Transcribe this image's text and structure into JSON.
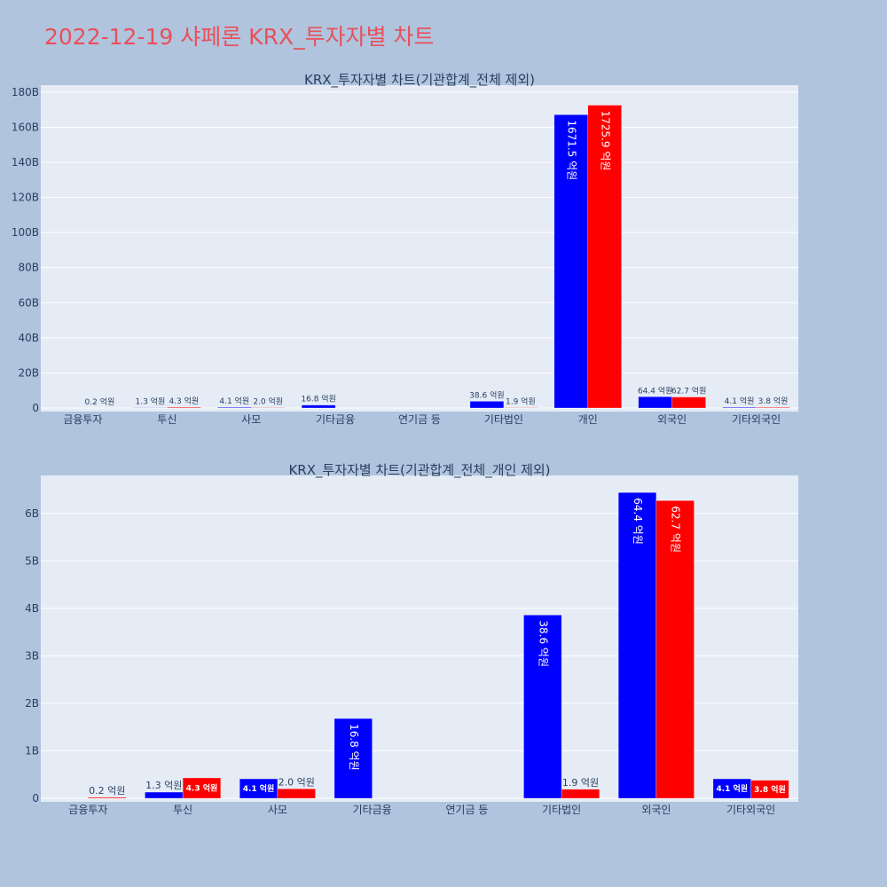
{
  "page": {
    "title": "2022-12-19 샤페론 KRX_투자자별 차트"
  },
  "colors": {
    "background": "#b0c4de",
    "plot_background": "#e5ecf6",
    "title": "#e8505b",
    "series_buy": "#0000ff",
    "series_sell": "#ff0000",
    "text": "#2a3f5f"
  },
  "chart_data": [
    {
      "type": "bar",
      "title": "KRX_투자자별 차트(기관합계_전체 제외)",
      "categories": [
        "금융투자",
        "투신",
        "사모",
        "기타금융",
        "연기금 등",
        "기타법인",
        "개인",
        "외국인",
        "기타외국인"
      ],
      "ylim": [
        0,
        184000000000
      ],
      "yticks": [
        0,
        20000000000,
        40000000000,
        60000000000,
        80000000000,
        100000000000,
        120000000000,
        140000000000,
        160000000000,
        180000000000
      ],
      "ytick_labels": [
        "0",
        "20B",
        "40B",
        "60B",
        "80B",
        "100B",
        "120B",
        "140B",
        "160B",
        "180B"
      ],
      "grid": true,
      "series": [
        {
          "color": "#0000ff",
          "values": [
            0,
            130000000,
            410000000,
            1680000000,
            0,
            3860000000,
            167150000000,
            6440000000,
            410000000
          ],
          "labels": [
            "",
            "1.3 억원",
            "4.1 억원",
            "16.8 억원",
            "",
            "38.6 억원",
            "1671.5 억원",
            "64.4 억원",
            "4.1 억원"
          ]
        },
        {
          "color": "#ff0000",
          "values": [
            20000000,
            430000000,
            200000000,
            0,
            0,
            190000000,
            172590000000,
            6270000000,
            380000000
          ],
          "labels": [
            "0.2 억원",
            "4.3 억원",
            "2.0 억원",
            "",
            "",
            "1.9 억원",
            "1725.9 억원",
            "62.7 억원",
            "3.8 억원"
          ]
        }
      ]
    },
    {
      "type": "bar",
      "title": "KRX_투자자별 차트(기관합계_전체_개인 제외)",
      "categories": [
        "금융투자",
        "투신",
        "사모",
        "기타금융",
        "연기금 등",
        "기타법인",
        "외국인",
        "기타외국인"
      ],
      "ylim": [
        0,
        6800000000
      ],
      "yticks": [
        0,
        1000000000,
        2000000000,
        3000000000,
        4000000000,
        5000000000,
        6000000000
      ],
      "ytick_labels": [
        "0",
        "1B",
        "2B",
        "3B",
        "4B",
        "5B",
        "6B"
      ],
      "grid": true,
      "series": [
        {
          "color": "#0000ff",
          "values": [
            0,
            130000000,
            410000000,
            1680000000,
            0,
            3860000000,
            6440000000,
            410000000
          ],
          "labels": [
            "",
            "1.3 억원",
            "4.1 억원",
            "16.8 억원",
            "",
            "38.6 억원",
            "64.4 억원",
            "4.1 억원"
          ]
        },
        {
          "color": "#ff0000",
          "values": [
            20000000,
            430000000,
            200000000,
            0,
            0,
            190000000,
            6270000000,
            380000000
          ],
          "labels": [
            "0.2 억원",
            "4.3 억원",
            "2.0 억원",
            "",
            "",
            "1.9 억원",
            "62.7 억원",
            "3.8 억원"
          ]
        }
      ]
    }
  ]
}
